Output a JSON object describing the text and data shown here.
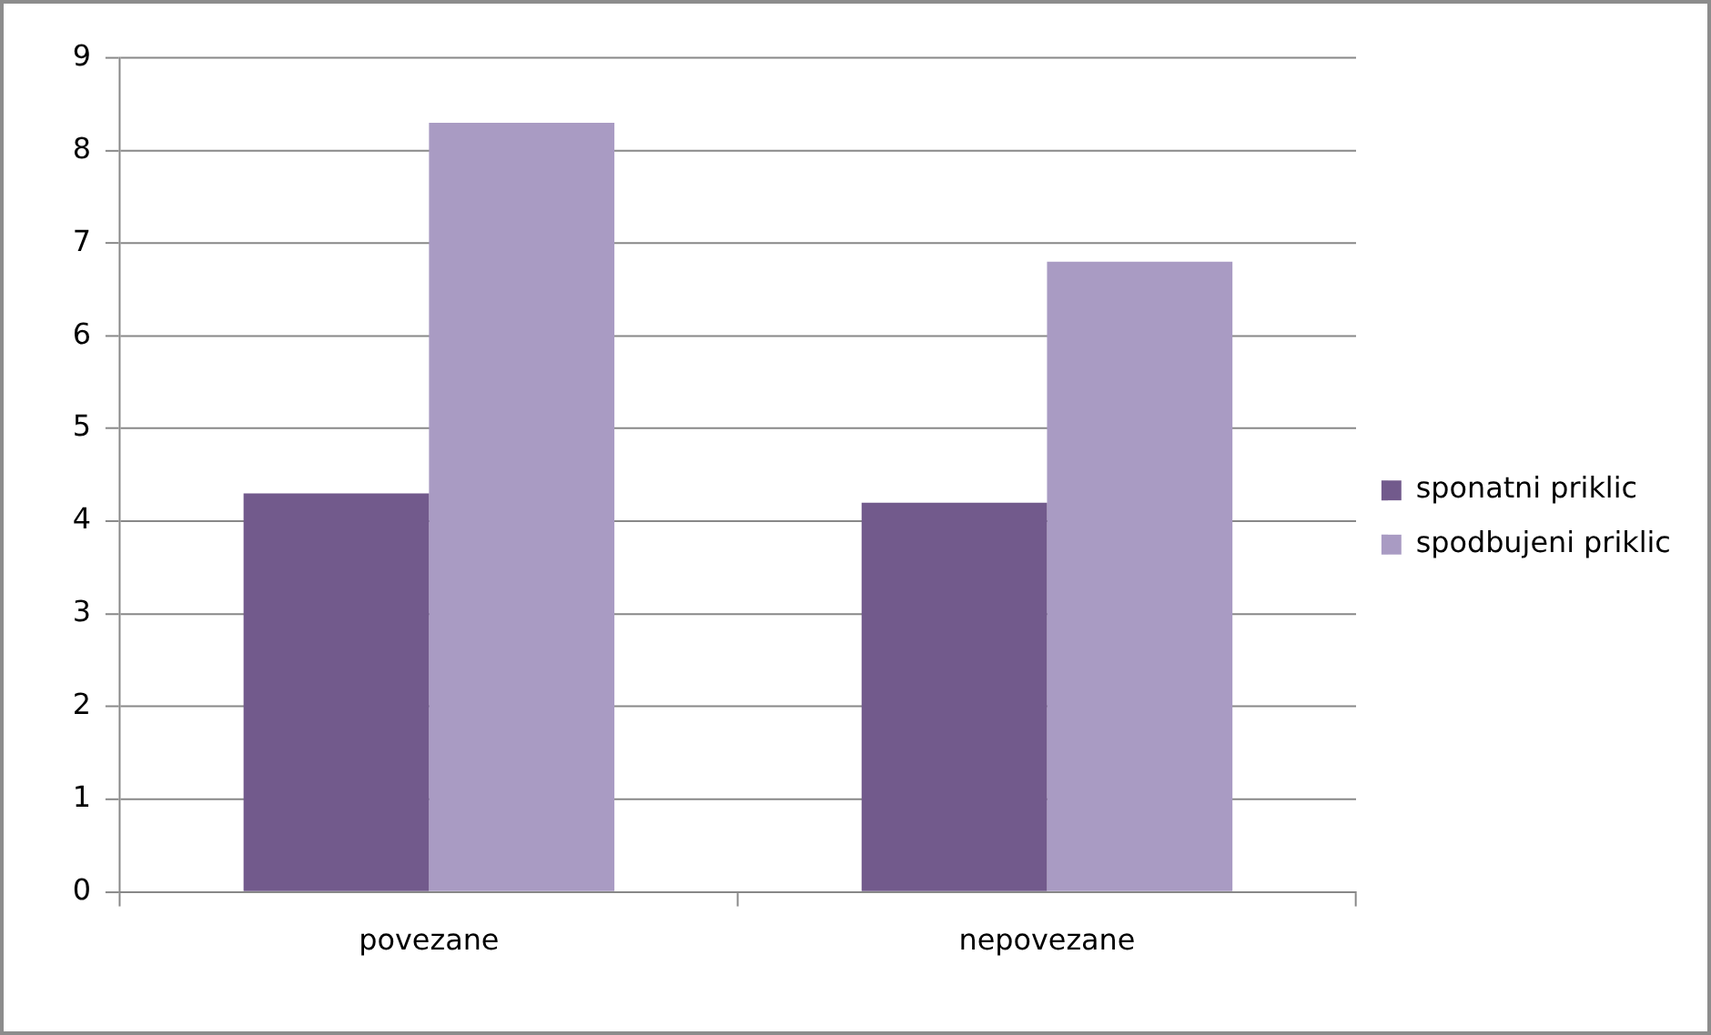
{
  "chart_data": {
    "type": "bar",
    "categories": [
      "povezane",
      "nepovezane"
    ],
    "series": [
      {
        "name": "sponatni priklic",
        "color": "#725a8c",
        "values": [
          4.3,
          4.2
        ]
      },
      {
        "name": "spodbujeni priklic",
        "color": "#a99bc3",
        "values": [
          8.3,
          6.8
        ]
      }
    ],
    "ylim": [
      0,
      9
    ],
    "yticks": [
      0,
      1,
      2,
      3,
      4,
      5,
      6,
      7,
      8,
      9
    ],
    "grid": "y",
    "legend": "right"
  }
}
